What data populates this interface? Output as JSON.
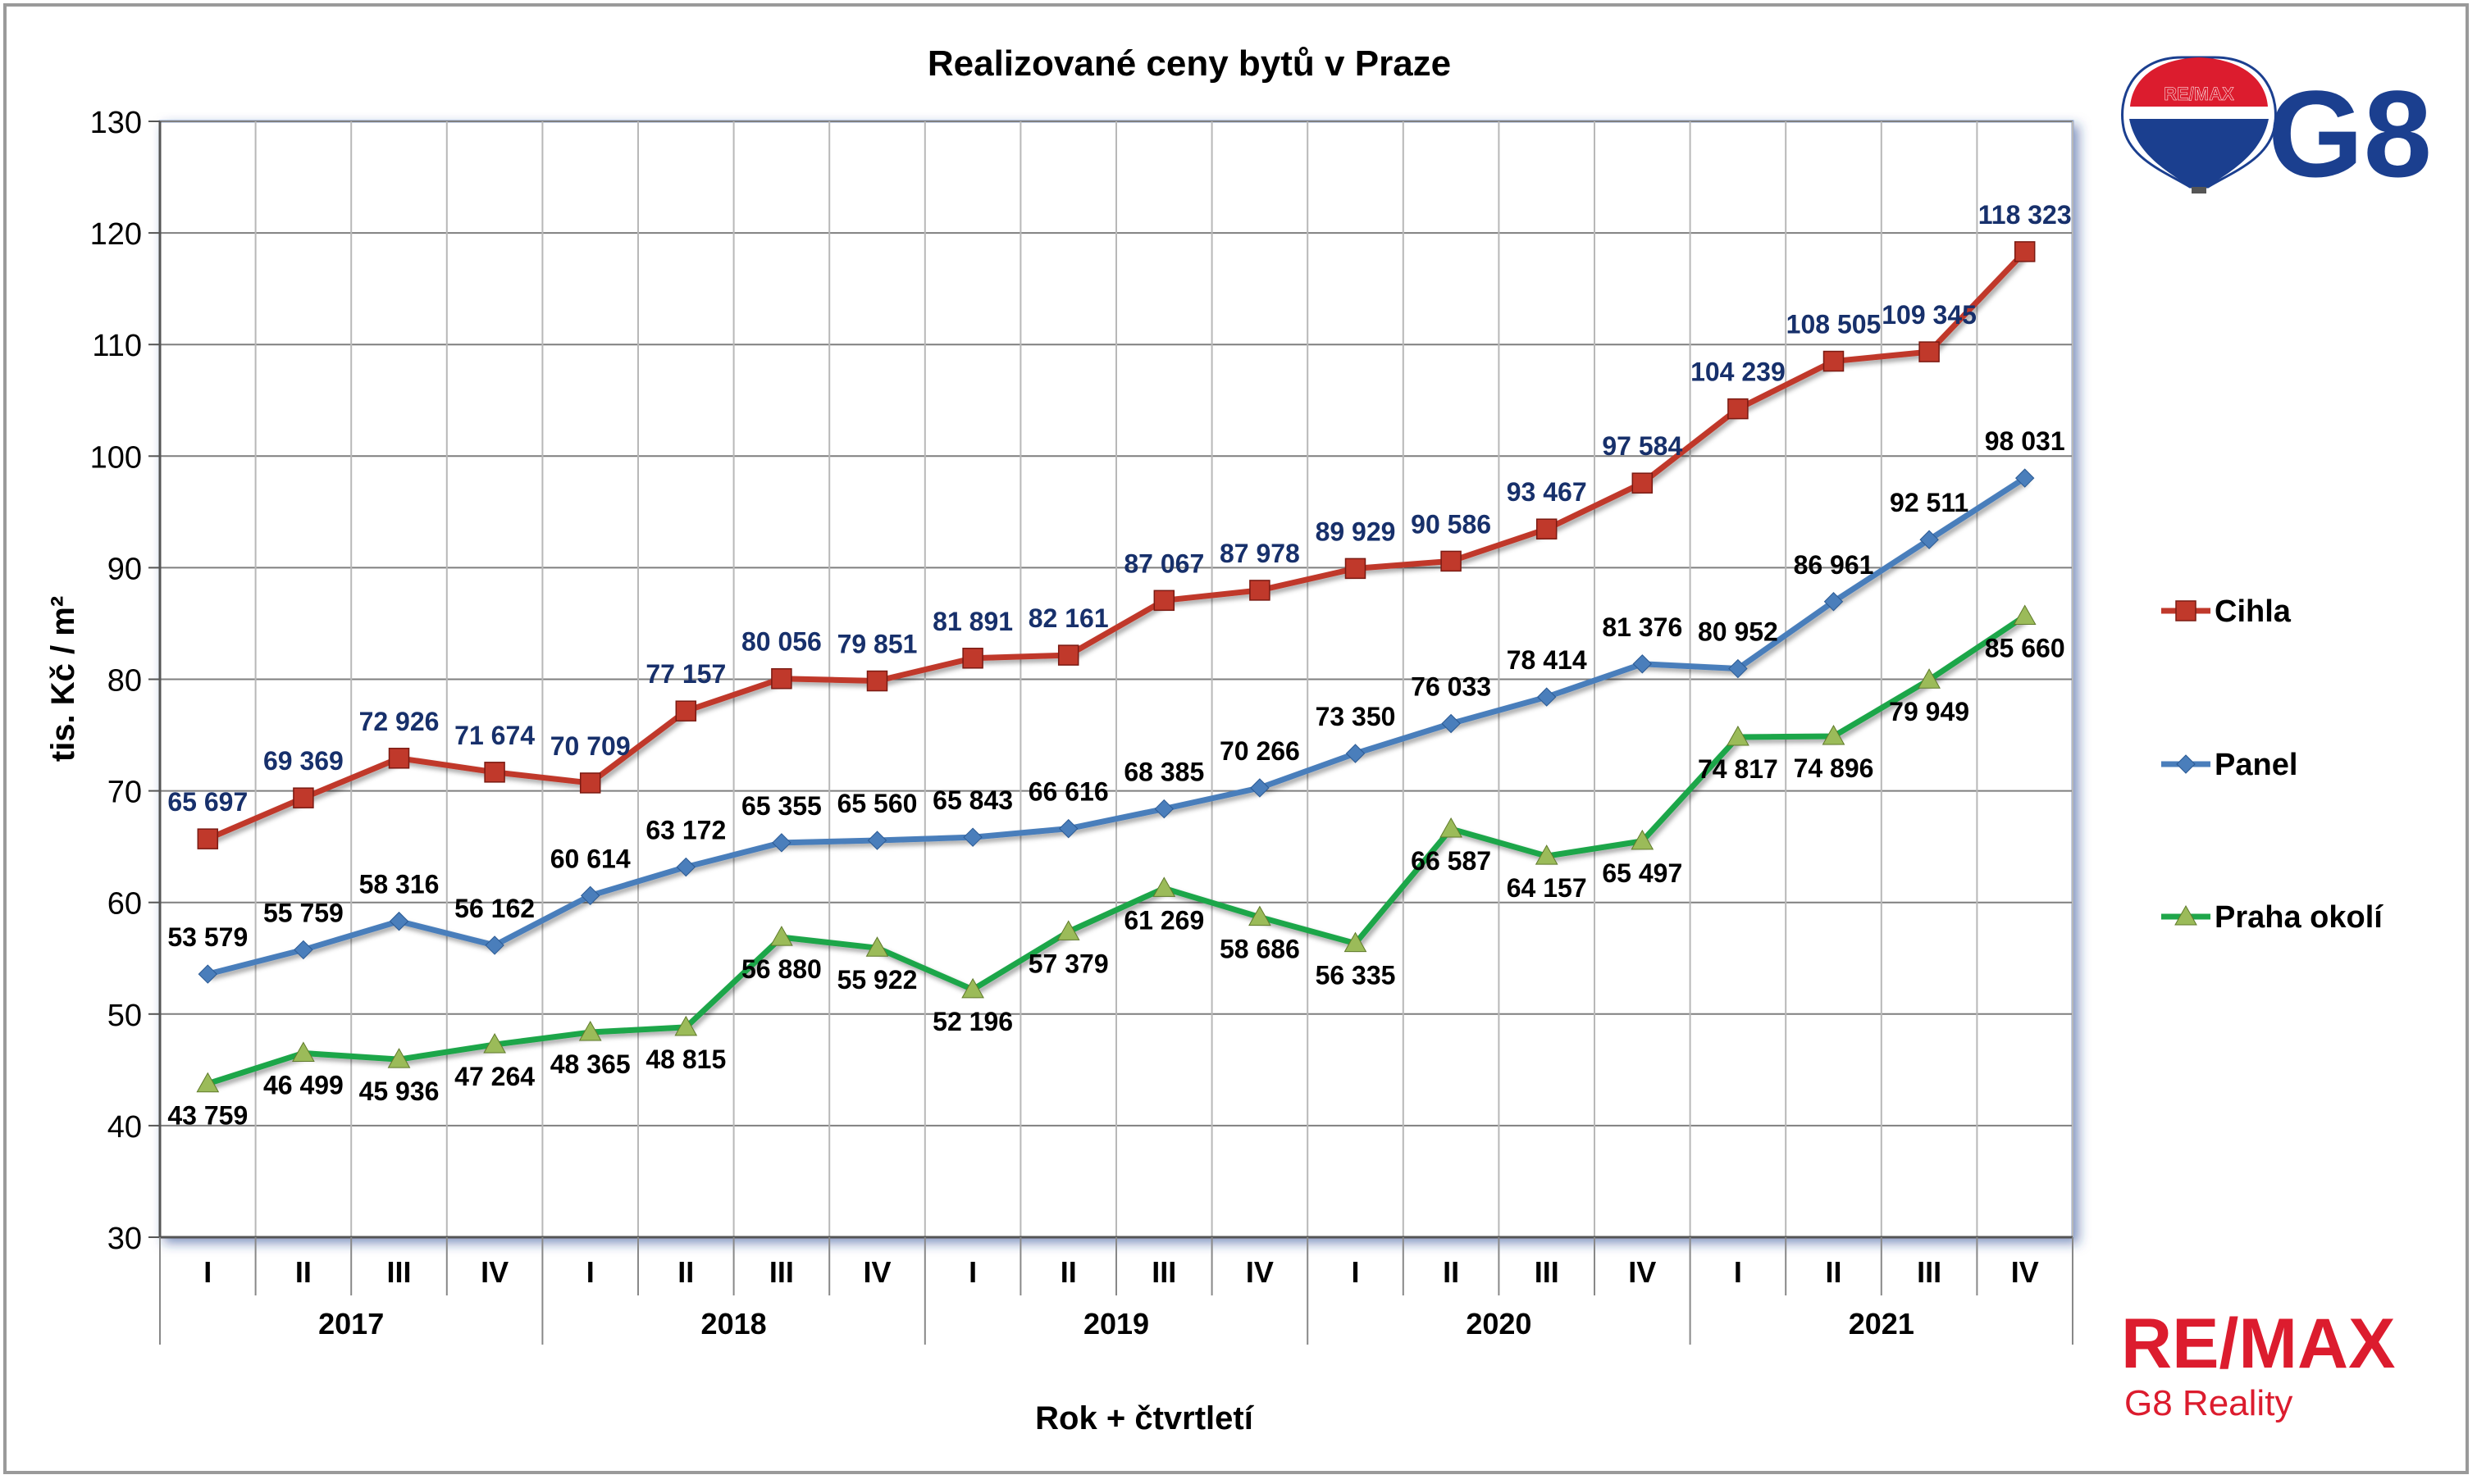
{
  "chart_data": {
    "type": "line",
    "title": "Realizované ceny bytů v Praze",
    "ylabel": "tis. Kč / m²",
    "xlabel": "Rok + čtvrtletí",
    "ylim": [
      30,
      130
    ],
    "yticks": [
      30,
      40,
      50,
      60,
      70,
      80,
      90,
      100,
      110,
      120,
      130
    ],
    "grid": true,
    "legend_position": "right",
    "quarters": [
      "I",
      "II",
      "III",
      "IV",
      "I",
      "II",
      "III",
      "IV",
      "I",
      "II",
      "III",
      "IV",
      "I",
      "II",
      "III",
      "IV",
      "I",
      "II",
      "III",
      "IV"
    ],
    "years": [
      "2017",
      "2018",
      "2019",
      "2020",
      "2021"
    ],
    "series": [
      {
        "name": "Cihla",
        "color": "#C0392B",
        "label_color": "#17306B",
        "marker": "square",
        "values": [
          65.697,
          69.369,
          72.926,
          71.674,
          70.709,
          77.157,
          80.056,
          79.851,
          81.891,
          82.161,
          87.067,
          87.978,
          89.929,
          90.586,
          93.467,
          97.584,
          104.239,
          108.505,
          109.345,
          118.323
        ],
        "labels": [
          "65 697",
          "69 369",
          "72 926",
          "71 674",
          "70 709",
          "77 157",
          "80 056",
          "79 851",
          "81 891",
          "82 161",
          "87 067",
          "87 978",
          "89 929",
          "90 586",
          "93 467",
          "97 584",
          "104 239",
          "108 505",
          "109 345",
          "118 323"
        ]
      },
      {
        "name": "Panel",
        "color": "#4A7EBB",
        "label_color": "#000000",
        "marker": "diamond",
        "values": [
          53.579,
          55.759,
          58.316,
          56.162,
          60.614,
          63.172,
          65.355,
          65.56,
          65.843,
          66.616,
          68.385,
          70.266,
          73.35,
          76.033,
          78.414,
          81.376,
          80.952,
          86.961,
          92.511,
          98.031
        ],
        "labels": [
          "53 579",
          "55 759",
          "58 316",
          "56 162",
          "60 614",
          "63 172",
          "65 355",
          "65 560",
          "65 843",
          "66 616",
          "68 385",
          "70 266",
          "73 350",
          "76 033",
          "78 414",
          "81 376",
          "80 952",
          "86 961",
          "92 511",
          "98 031"
        ]
      },
      {
        "name": "Praha okolí",
        "color": "#1FA64A",
        "label_color": "#000000",
        "marker": "triangle",
        "values": [
          43.759,
          46.499,
          45.936,
          47.264,
          48.365,
          48.815,
          56.88,
          55.922,
          52.196,
          57.379,
          61.269,
          58.686,
          56.335,
          66.587,
          64.157,
          65.497,
          74.817,
          74.896,
          79.949,
          85.66
        ],
        "labels": [
          "43 759",
          "46 499",
          "45 936",
          "47 264",
          "48 365",
          "48 815",
          "56 880",
          "55 922",
          "52 196",
          "57 379",
          "61 269",
          "58 686",
          "56 335",
          "66 587",
          "64 157",
          "65 497",
          "74 817",
          "74 896",
          "79 949",
          "85 660"
        ]
      }
    ]
  },
  "branding": {
    "balloon_text": "RE/MAX",
    "logo_g8": "G8",
    "remax_wordmark": "RE/MAX",
    "company": "G8 Reality",
    "brand_red": "#DC1C2E",
    "brand_blue": "#1B3F8F"
  }
}
